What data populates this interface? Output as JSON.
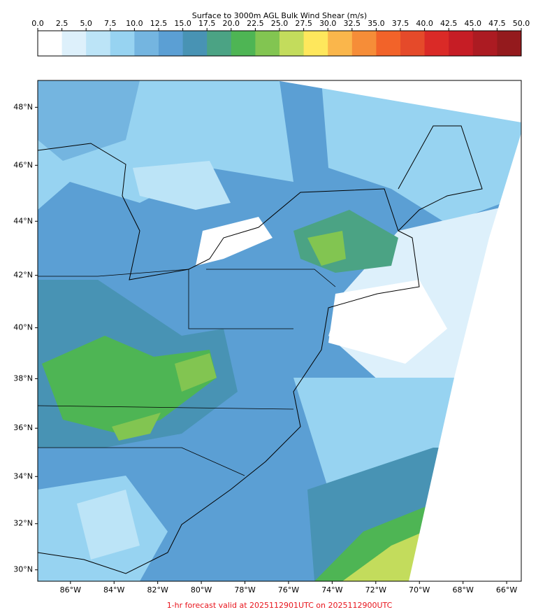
{
  "colorbar": {
    "title": "Surface to 3000m AGL Bulk Wind Shear (m/s)",
    "ticks": [
      {
        "value": 0,
        "label": "0.0"
      },
      {
        "value": 2.5,
        "label": "2.5"
      },
      {
        "value": 5,
        "label": "5.0"
      },
      {
        "value": 7.5,
        "label": "7.5"
      },
      {
        "value": 10,
        "label": "10.0"
      },
      {
        "value": 12.5,
        "label": "12.5"
      },
      {
        "value": 15,
        "label": "15.0"
      },
      {
        "value": 17.5,
        "label": "17.5"
      },
      {
        "value": 20,
        "label": "20.0"
      },
      {
        "value": 22.5,
        "label": "22.5"
      },
      {
        "value": 25,
        "label": "25.0"
      },
      {
        "value": 27.5,
        "label": "27.5"
      },
      {
        "value": 30,
        "label": "30.0"
      },
      {
        "value": 32.5,
        "label": "32.5"
      },
      {
        "value": 35,
        "label": "35.0"
      },
      {
        "value": 37.5,
        "label": "37.5"
      },
      {
        "value": 40,
        "label": "40.0"
      },
      {
        "value": 42.5,
        "label": "42.5"
      },
      {
        "value": 45,
        "label": "45.0"
      },
      {
        "value": 47.5,
        "label": "47.5"
      },
      {
        "value": 50,
        "label": "50.0"
      }
    ],
    "colors": [
      "#ffffff",
      "#ddf0fb",
      "#bce4f7",
      "#97d3f1",
      "#74b5e0",
      "#5b9fd4",
      "#4893b4",
      "#4ba384",
      "#4eb554",
      "#82c551",
      "#c3dc5c",
      "#fee75c",
      "#fab64b",
      "#f68d38",
      "#f26329",
      "#e54a2a",
      "#da2a27",
      "#c61d25",
      "#ac1b22",
      "#941a1d"
    ]
  },
  "map": {
    "lonlim": [
      -87.5,
      -65.33
    ],
    "latlim": [
      29.5,
      48.9
    ],
    "lon_ticks": [
      {
        "value": -86,
        "label": "86°W"
      },
      {
        "value": -84,
        "label": "84°W"
      },
      {
        "value": -82,
        "label": "82°W"
      },
      {
        "value": -80,
        "label": "80°W"
      },
      {
        "value": -78,
        "label": "78°W"
      },
      {
        "value": -76,
        "label": "76°W"
      },
      {
        "value": -74,
        "label": "74°W"
      },
      {
        "value": -72,
        "label": "72°W"
      },
      {
        "value": -70,
        "label": "70°W"
      },
      {
        "value": -68,
        "label": "68°W"
      },
      {
        "value": -66,
        "label": "66°W"
      }
    ],
    "lat_ticks": [
      {
        "value": 30,
        "label": "30°N"
      },
      {
        "value": 32,
        "label": "32°N"
      },
      {
        "value": 34,
        "label": "34°N"
      },
      {
        "value": 36,
        "label": "36°N"
      },
      {
        "value": 38,
        "label": "38°N"
      },
      {
        "value": 40,
        "label": "40°N"
      },
      {
        "value": 42,
        "label": "42°N"
      },
      {
        "value": 44,
        "label": "44°N"
      },
      {
        "value": 46,
        "label": "46°N"
      },
      {
        "value": 48,
        "label": "48°N"
      }
    ]
  },
  "footer": "1-hr forecast valid at 2025112901UTC on 2025112900UTC"
}
